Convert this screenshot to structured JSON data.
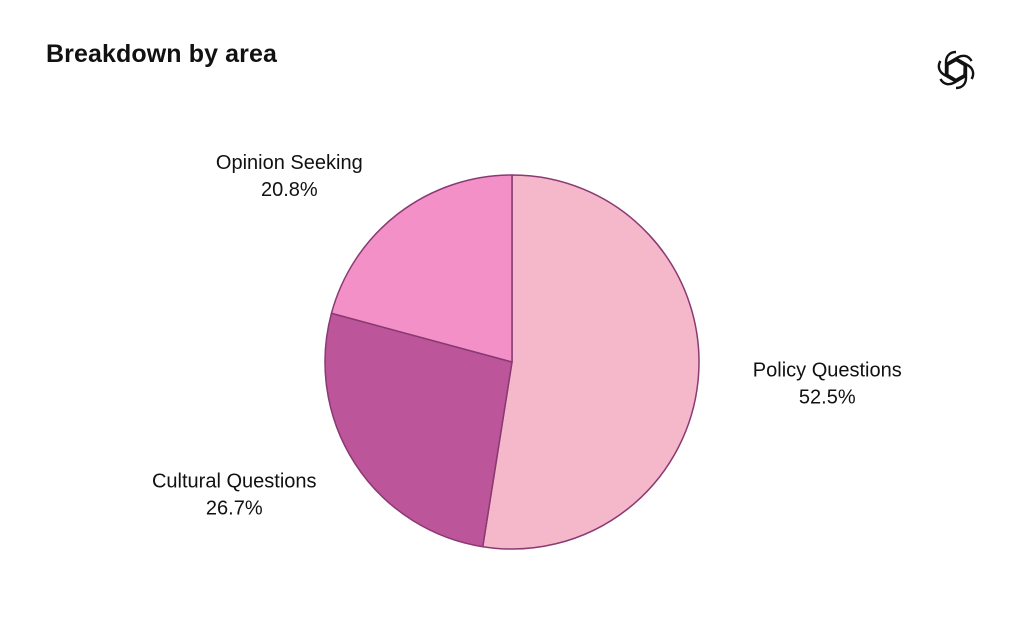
{
  "header": {
    "title": "Breakdown by area",
    "logo_icon": "openai-knot-icon"
  },
  "chart_data": {
    "type": "pie",
    "title": "Breakdown by area",
    "start_angle_deg": 0,
    "direction": "clockwise",
    "slices": [
      {
        "label": "Policy Questions",
        "value": 52.5,
        "value_label": "52.5%",
        "color": "#f5b8cb"
      },
      {
        "label": "Cultural Questions",
        "value": 26.7,
        "value_label": "26.7%",
        "color": "#bc5599"
      },
      {
        "label": "Opinion Seeking",
        "value": 20.8,
        "value_label": "20.8%",
        "color": "#f490c8"
      }
    ],
    "edge_color": "#8a3a72"
  }
}
